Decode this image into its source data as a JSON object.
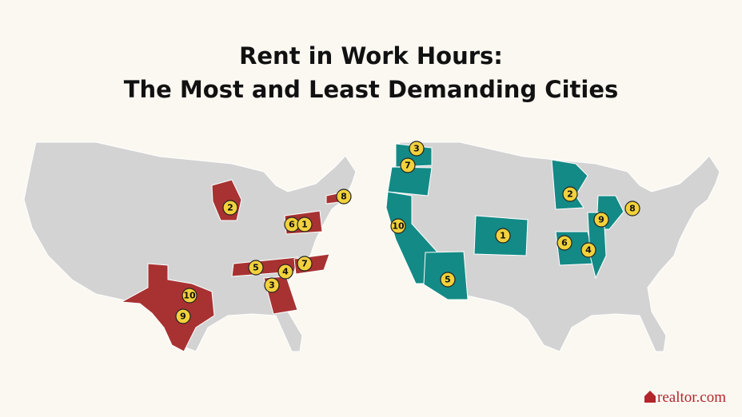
{
  "title": [
    "Rent in Work Hours:",
    "The Most and Least Demanding Cities"
  ],
  "maps": [
    {
      "markers": [
        "2",
        "6",
        "1",
        "8",
        "5",
        "4",
        "7",
        "3",
        "10",
        "9"
      ]
    },
    {
      "markers": [
        "3",
        "7",
        "10",
        "1",
        "5",
        "2",
        "9",
        "8",
        "6",
        "4"
      ]
    }
  ],
  "logo": "realtor.com"
}
